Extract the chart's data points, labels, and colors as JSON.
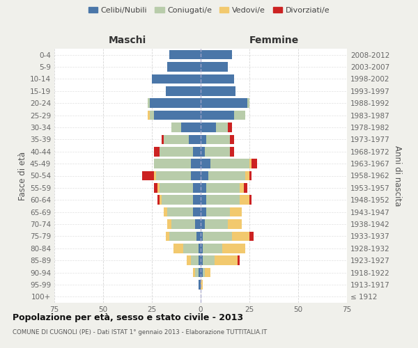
{
  "age_groups": [
    "100+",
    "95-99",
    "90-94",
    "85-89",
    "80-84",
    "75-79",
    "70-74",
    "65-69",
    "60-64",
    "55-59",
    "50-54",
    "45-49",
    "40-44",
    "35-39",
    "30-34",
    "25-29",
    "20-24",
    "15-19",
    "10-14",
    "5-9",
    "0-4"
  ],
  "birth_years": [
    "≤ 1912",
    "1913-1917",
    "1918-1922",
    "1923-1927",
    "1928-1932",
    "1933-1937",
    "1938-1942",
    "1943-1947",
    "1948-1952",
    "1953-1957",
    "1958-1962",
    "1963-1967",
    "1968-1972",
    "1973-1977",
    "1978-1982",
    "1983-1987",
    "1988-1992",
    "1993-1997",
    "1998-2002",
    "2003-2007",
    "2008-2012"
  ],
  "males": {
    "celibi": [
      0,
      1,
      1,
      1,
      1,
      2,
      3,
      4,
      4,
      4,
      5,
      5,
      4,
      6,
      10,
      24,
      26,
      18,
      25,
      17,
      16
    ],
    "coniugati": [
      0,
      0,
      2,
      4,
      8,
      14,
      12,
      13,
      16,
      17,
      18,
      19,
      17,
      13,
      5,
      2,
      1,
      0,
      0,
      0,
      0
    ],
    "vedovi": [
      0,
      0,
      1,
      2,
      5,
      2,
      2,
      2,
      1,
      1,
      1,
      0,
      0,
      0,
      0,
      1,
      0,
      0,
      0,
      0,
      0
    ],
    "divorziati": [
      0,
      0,
      0,
      0,
      0,
      0,
      0,
      0,
      1,
      2,
      6,
      0,
      3,
      1,
      0,
      0,
      0,
      0,
      0,
      0,
      0
    ]
  },
  "females": {
    "nubili": [
      0,
      0,
      1,
      1,
      1,
      1,
      2,
      3,
      3,
      3,
      4,
      5,
      2,
      3,
      8,
      17,
      24,
      18,
      17,
      14,
      16
    ],
    "coniugate": [
      0,
      0,
      1,
      6,
      10,
      15,
      12,
      12,
      17,
      17,
      19,
      20,
      13,
      12,
      6,
      6,
      1,
      0,
      0,
      0,
      0
    ],
    "vedove": [
      0,
      1,
      3,
      12,
      12,
      9,
      7,
      6,
      5,
      2,
      2,
      1,
      0,
      0,
      0,
      0,
      0,
      0,
      0,
      0,
      0
    ],
    "divorziate": [
      0,
      0,
      0,
      1,
      0,
      2,
      0,
      0,
      1,
      2,
      1,
      3,
      2,
      2,
      2,
      0,
      0,
      0,
      0,
      0,
      0
    ]
  },
  "colors": {
    "celibi": "#4a76a8",
    "coniugati": "#b8ccaa",
    "vedovi": "#f2c96e",
    "divorziati": "#cc2222"
  },
  "title": "Popolazione per età, sesso e stato civile - 2013",
  "subtitle": "COMUNE DI CUGNOLI (PE) - Dati ISTAT 1° gennaio 2013 - Elaborazione TUTTITALIA.IT",
  "xlabel_left": "Maschi",
  "xlabel_right": "Femmine",
  "ylabel_left": "Fasce di età",
  "ylabel_right": "Anni di nascita",
  "xlim": 75,
  "legend_labels": [
    "Celibi/Nubili",
    "Coniugati/e",
    "Vedovi/e",
    "Divorziati/e"
  ],
  "bg_color": "#f0f0eb",
  "bar_bg_color": "#ffffff"
}
